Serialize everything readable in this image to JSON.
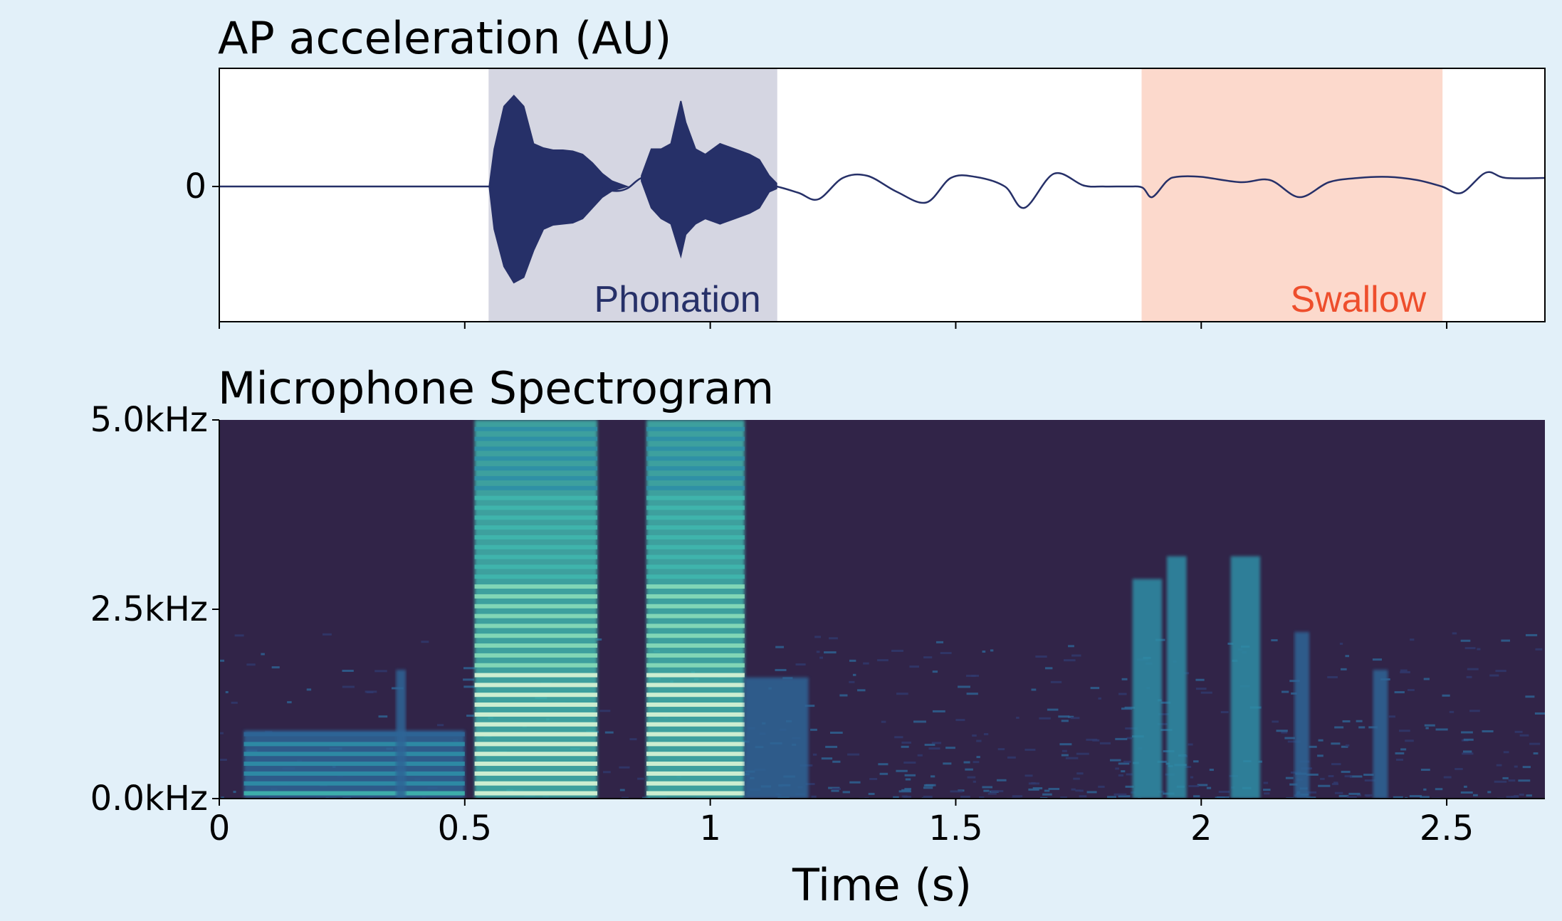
{
  "chart_data": [
    {
      "type": "line",
      "title": "AP acceleration (AU)",
      "xlim": [
        0,
        2.7
      ],
      "ylim": [
        -1,
        1
      ],
      "yticks": [
        {
          "value": 0,
          "label": "0"
        }
      ],
      "xticks": [
        0,
        0.5,
        1,
        1.5,
        2,
        2.5
      ],
      "regions": [
        {
          "label": "Phonation",
          "x0": 0.55,
          "x1": 1.135,
          "color": "#d5d6e2",
          "label_color": "#263068"
        },
        {
          "label": "Swallow",
          "x0": 1.88,
          "x1": 2.49,
          "color": "#fcd9cc",
          "label_color": "#ee4e2c"
        }
      ],
      "series": [
        {
          "color": "#263068",
          "x": [
            0,
            0.3,
            0.55,
            0.75,
            0.8,
            0.83,
            0.86,
            0.9,
            1.0,
            1.05,
            1.1,
            1.135,
            1.18,
            1.22,
            1.27,
            1.32,
            1.38,
            1.44,
            1.49,
            1.54,
            1.6,
            1.64,
            1.7,
            1.76,
            1.8,
            1.85,
            1.88,
            1.9,
            1.93,
            1.95,
            2.0,
            2.08,
            2.14,
            2.2,
            2.26,
            2.32,
            2.38,
            2.44,
            2.49,
            2.53,
            2.58,
            2.62,
            2.7
          ],
          "y": [
            0,
            0,
            0,
            0.02,
            -0.04,
            -0.02,
            0.08,
            0.1,
            0.05,
            0.03,
            0.01,
            0.0,
            -0.06,
            -0.12,
            0.08,
            0.1,
            -0.05,
            -0.15,
            0.08,
            0.09,
            0.0,
            -0.2,
            0.12,
            0.01,
            0.0,
            0.0,
            -0.01,
            -0.1,
            0.05,
            0.09,
            0.09,
            0.04,
            0.06,
            -0.1,
            0.04,
            0.08,
            0.09,
            0.06,
            0.0,
            -0.06,
            0.13,
            0.08,
            0.08
          ]
        },
        {
          "color": "#263068",
          "name": "",
          "envelope": true,
          "x": [
            0.55,
            0.56,
            0.58,
            0.6,
            0.62,
            0.64,
            0.66,
            0.68,
            0.7,
            0.72,
            0.74,
            0.76,
            0.78,
            0.8,
            0.83
          ],
          "upper": [
            0.0,
            0.35,
            0.75,
            0.85,
            0.75,
            0.4,
            0.36,
            0.34,
            0.34,
            0.33,
            0.3,
            0.22,
            0.12,
            0.05,
            0.0
          ],
          "lower": [
            0.0,
            -0.4,
            -0.75,
            -0.9,
            -0.85,
            -0.6,
            -0.4,
            -0.36,
            -0.35,
            -0.34,
            -0.3,
            -0.2,
            -0.1,
            -0.04,
            0.0
          ]
        },
        {
          "color": "#263068",
          "name": "",
          "envelope": true,
          "x": [
            0.86,
            0.88,
            0.9,
            0.92,
            0.94,
            0.95,
            0.97,
            0.99,
            1.02,
            1.05,
            1.08,
            1.1,
            1.12,
            1.135
          ],
          "upper": [
            0.1,
            0.35,
            0.35,
            0.4,
            0.8,
            0.6,
            0.35,
            0.3,
            0.4,
            0.35,
            0.3,
            0.25,
            0.1,
            0.03
          ],
          "lower": [
            0.05,
            -0.2,
            -0.3,
            -0.35,
            -0.65,
            -0.45,
            -0.35,
            -0.3,
            -0.35,
            -0.3,
            -0.25,
            -0.2,
            -0.05,
            -0.02
          ]
        }
      ]
    },
    {
      "type": "heatmap",
      "title": "Microphone Spectrogram",
      "xlabel": "Time (s)",
      "xlim": [
        0,
        2.7
      ],
      "ylim": [
        0,
        5.0
      ],
      "xticks": [
        {
          "value": 0,
          "label": "0"
        },
        {
          "value": 0.5,
          "label": "0.5"
        },
        {
          "value": 1,
          "label": "1"
        },
        {
          "value": 1.5,
          "label": "1.5"
        },
        {
          "value": 2,
          "label": "2"
        },
        {
          "value": 2.5,
          "label": "2.5"
        }
      ],
      "yticks": [
        {
          "value": 0,
          "label": "0.0kHz"
        },
        {
          "value": 2.5,
          "label": "2.5kHz"
        },
        {
          "value": 5.0,
          "label": "5.0kHz"
        }
      ],
      "colormap": [
        "#312448",
        "#313a6e",
        "#2e6596",
        "#2e8ea6",
        "#3fb6ad",
        "#88dcb8",
        "#dcf6d6"
      ],
      "energy_bursts": [
        {
          "t0": 0.52,
          "t1": 0.77,
          "f_max": 5.0,
          "intensity": 1.0,
          "harmonic": true
        },
        {
          "t0": 0.87,
          "t1": 1.07,
          "f_max": 5.0,
          "intensity": 1.0,
          "harmonic": true
        },
        {
          "t0": 0.05,
          "t1": 0.5,
          "f_max": 0.9,
          "intensity": 0.35,
          "harmonic": true
        },
        {
          "t0": 1.07,
          "t1": 1.2,
          "f_max": 1.6,
          "intensity": 0.35,
          "harmonic": false
        },
        {
          "t0": 1.86,
          "t1": 1.92,
          "f_max": 2.9,
          "intensity": 0.55,
          "harmonic": false
        },
        {
          "t0": 1.93,
          "t1": 1.97,
          "f_max": 3.2,
          "intensity": 0.55,
          "harmonic": false
        },
        {
          "t0": 2.06,
          "t1": 2.12,
          "f_max": 3.2,
          "intensity": 0.55,
          "harmonic": false
        },
        {
          "t0": 2.19,
          "t1": 2.22,
          "f_max": 2.2,
          "intensity": 0.35,
          "harmonic": false
        },
        {
          "t0": 2.35,
          "t1": 2.38,
          "f_max": 1.7,
          "intensity": 0.4,
          "harmonic": false
        },
        {
          "t0": 0.36,
          "t1": 0.38,
          "f_max": 1.7,
          "intensity": 0.3,
          "harmonic": false
        }
      ]
    }
  ]
}
